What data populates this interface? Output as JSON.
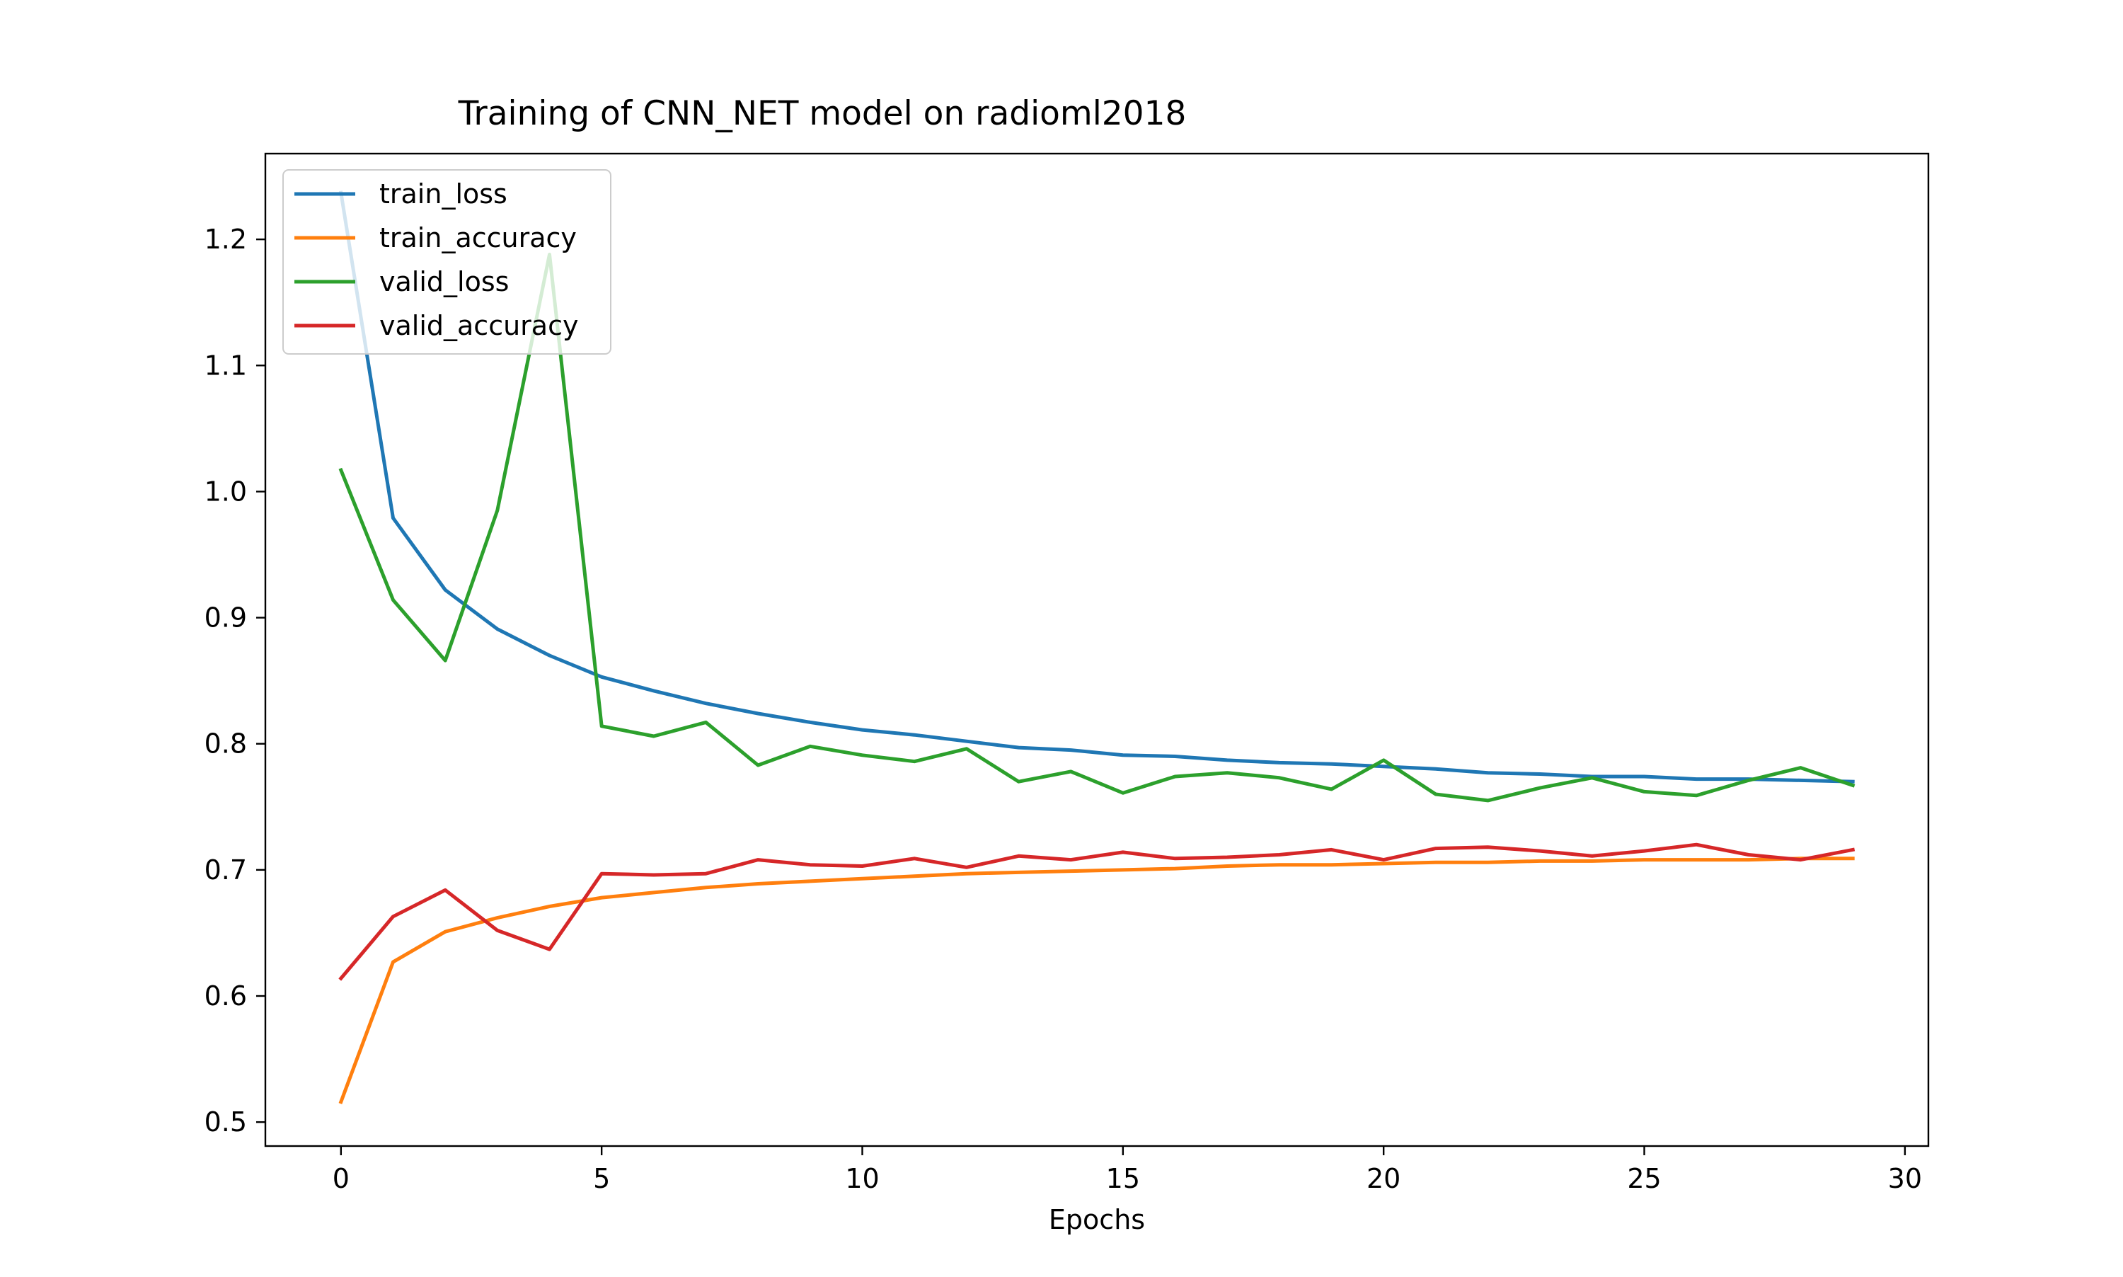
{
  "chart_data": {
    "type": "line",
    "title": "Training of CNN_NET model on radioml2018",
    "xlabel": "Epochs",
    "ylabel": "",
    "xlim": [
      -1.45,
      30.45
    ],
    "ylim": [
      0.481,
      1.268
    ],
    "xticks": [
      0,
      5,
      10,
      15,
      20,
      25,
      30
    ],
    "yticks": [
      0.5,
      0.6,
      0.7,
      0.8,
      0.9,
      1.0,
      1.1,
      1.2
    ],
    "grid": false,
    "legend_position": "top-left",
    "x": [
      0,
      1,
      2,
      3,
      4,
      5,
      6,
      7,
      8,
      9,
      10,
      11,
      12,
      13,
      14,
      15,
      16,
      17,
      18,
      19,
      20,
      21,
      22,
      23,
      24,
      25,
      26,
      27,
      28,
      29
    ],
    "series": [
      {
        "name": "train_loss",
        "color": "#1f77b4",
        "values": [
          1.237,
          0.979,
          0.922,
          0.891,
          0.87,
          0.853,
          0.842,
          0.832,
          0.824,
          0.817,
          0.811,
          0.807,
          0.802,
          0.797,
          0.795,
          0.791,
          0.79,
          0.787,
          0.785,
          0.784,
          0.782,
          0.78,
          0.777,
          0.776,
          0.774,
          0.774,
          0.772,
          0.772,
          0.771,
          0.77
        ]
      },
      {
        "name": "train_accuracy",
        "color": "#ff7f0e",
        "values": [
          0.516,
          0.627,
          0.651,
          0.662,
          0.671,
          0.678,
          0.682,
          0.686,
          0.689,
          0.691,
          0.693,
          0.695,
          0.697,
          0.698,
          0.699,
          0.7,
          0.701,
          0.703,
          0.704,
          0.704,
          0.705,
          0.706,
          0.706,
          0.707,
          0.707,
          0.708,
          0.708,
          0.708,
          0.709,
          0.709
        ]
      },
      {
        "name": "valid_loss",
        "color": "#2ca02c",
        "values": [
          1.017,
          0.914,
          0.866,
          0.985,
          1.188,
          0.814,
          0.806,
          0.817,
          0.783,
          0.798,
          0.791,
          0.786,
          0.796,
          0.77,
          0.778,
          0.761,
          0.774,
          0.777,
          0.773,
          0.764,
          0.787,
          0.76,
          0.755,
          0.765,
          0.773,
          0.762,
          0.759,
          0.771,
          0.781,
          0.767
        ]
      },
      {
        "name": "valid_accuracy",
        "color": "#d62728",
        "values": [
          0.614,
          0.663,
          0.684,
          0.652,
          0.637,
          0.697,
          0.696,
          0.697,
          0.708,
          0.704,
          0.703,
          0.709,
          0.702,
          0.711,
          0.708,
          0.714,
          0.709,
          0.71,
          0.712,
          0.716,
          0.708,
          0.717,
          0.718,
          0.715,
          0.711,
          0.715,
          0.72,
          0.712,
          0.708,
          0.716
        ]
      }
    ]
  }
}
